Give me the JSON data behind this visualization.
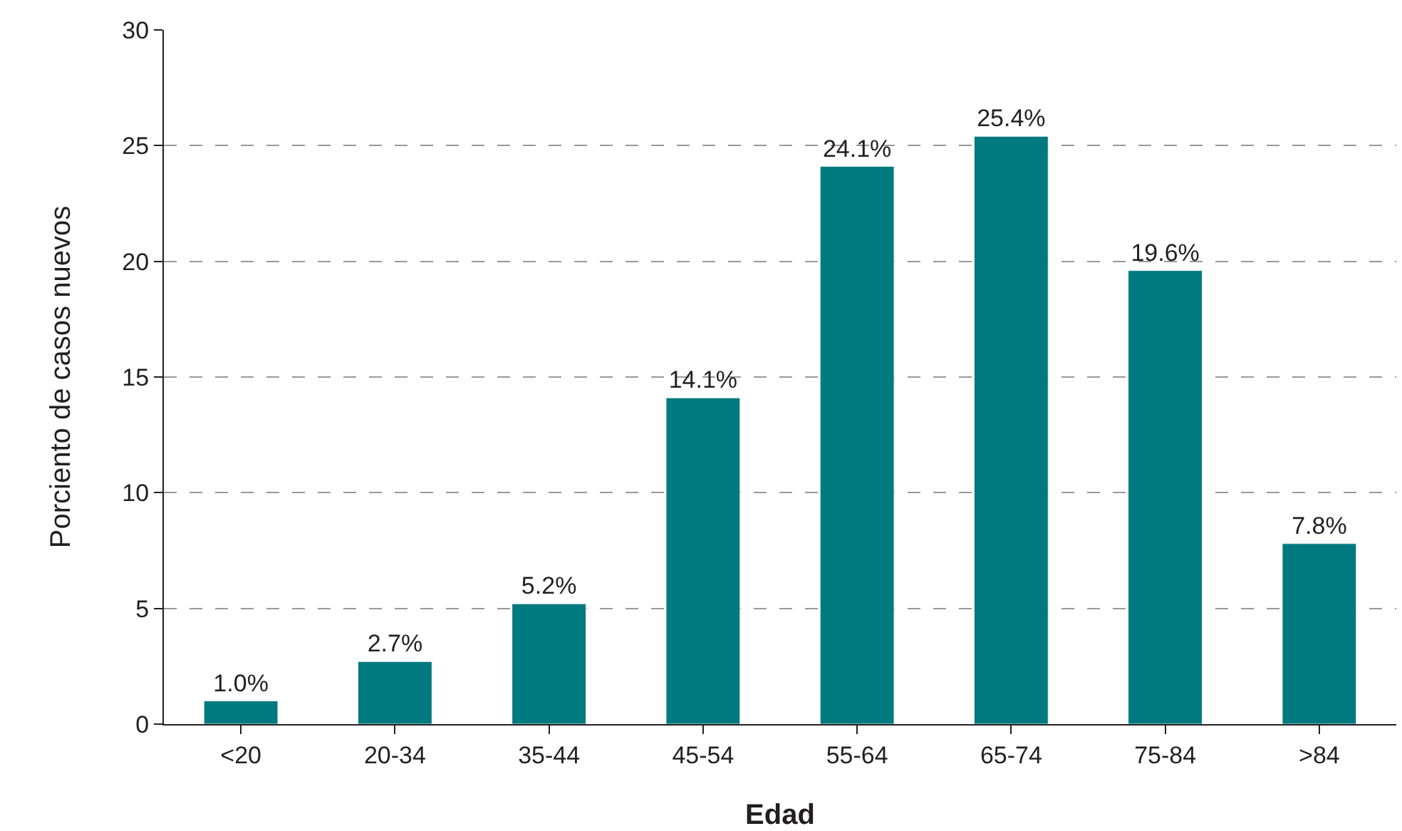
{
  "chart_data": {
    "type": "bar",
    "xlabel": "Edad",
    "ylabel": "Porciento de casos nuevos",
    "categories": [
      "<20",
      "20-34",
      "35-44",
      "45-54",
      "55-64",
      "65-74",
      "75-84",
      ">84"
    ],
    "values": [
      1.0,
      2.7,
      5.2,
      14.1,
      24.1,
      25.4,
      19.6,
      7.8
    ],
    "value_labels": [
      "1.0%",
      "2.7%",
      "5.2%",
      "14.1%",
      "24.1%",
      "25.4%",
      "19.6%",
      "7.8%"
    ],
    "color": "#007a7e",
    "ylim": [
      0,
      30
    ],
    "yticks": [
      0,
      5,
      10,
      15,
      20,
      25,
      30
    ],
    "grid": "y",
    "legend": false
  }
}
